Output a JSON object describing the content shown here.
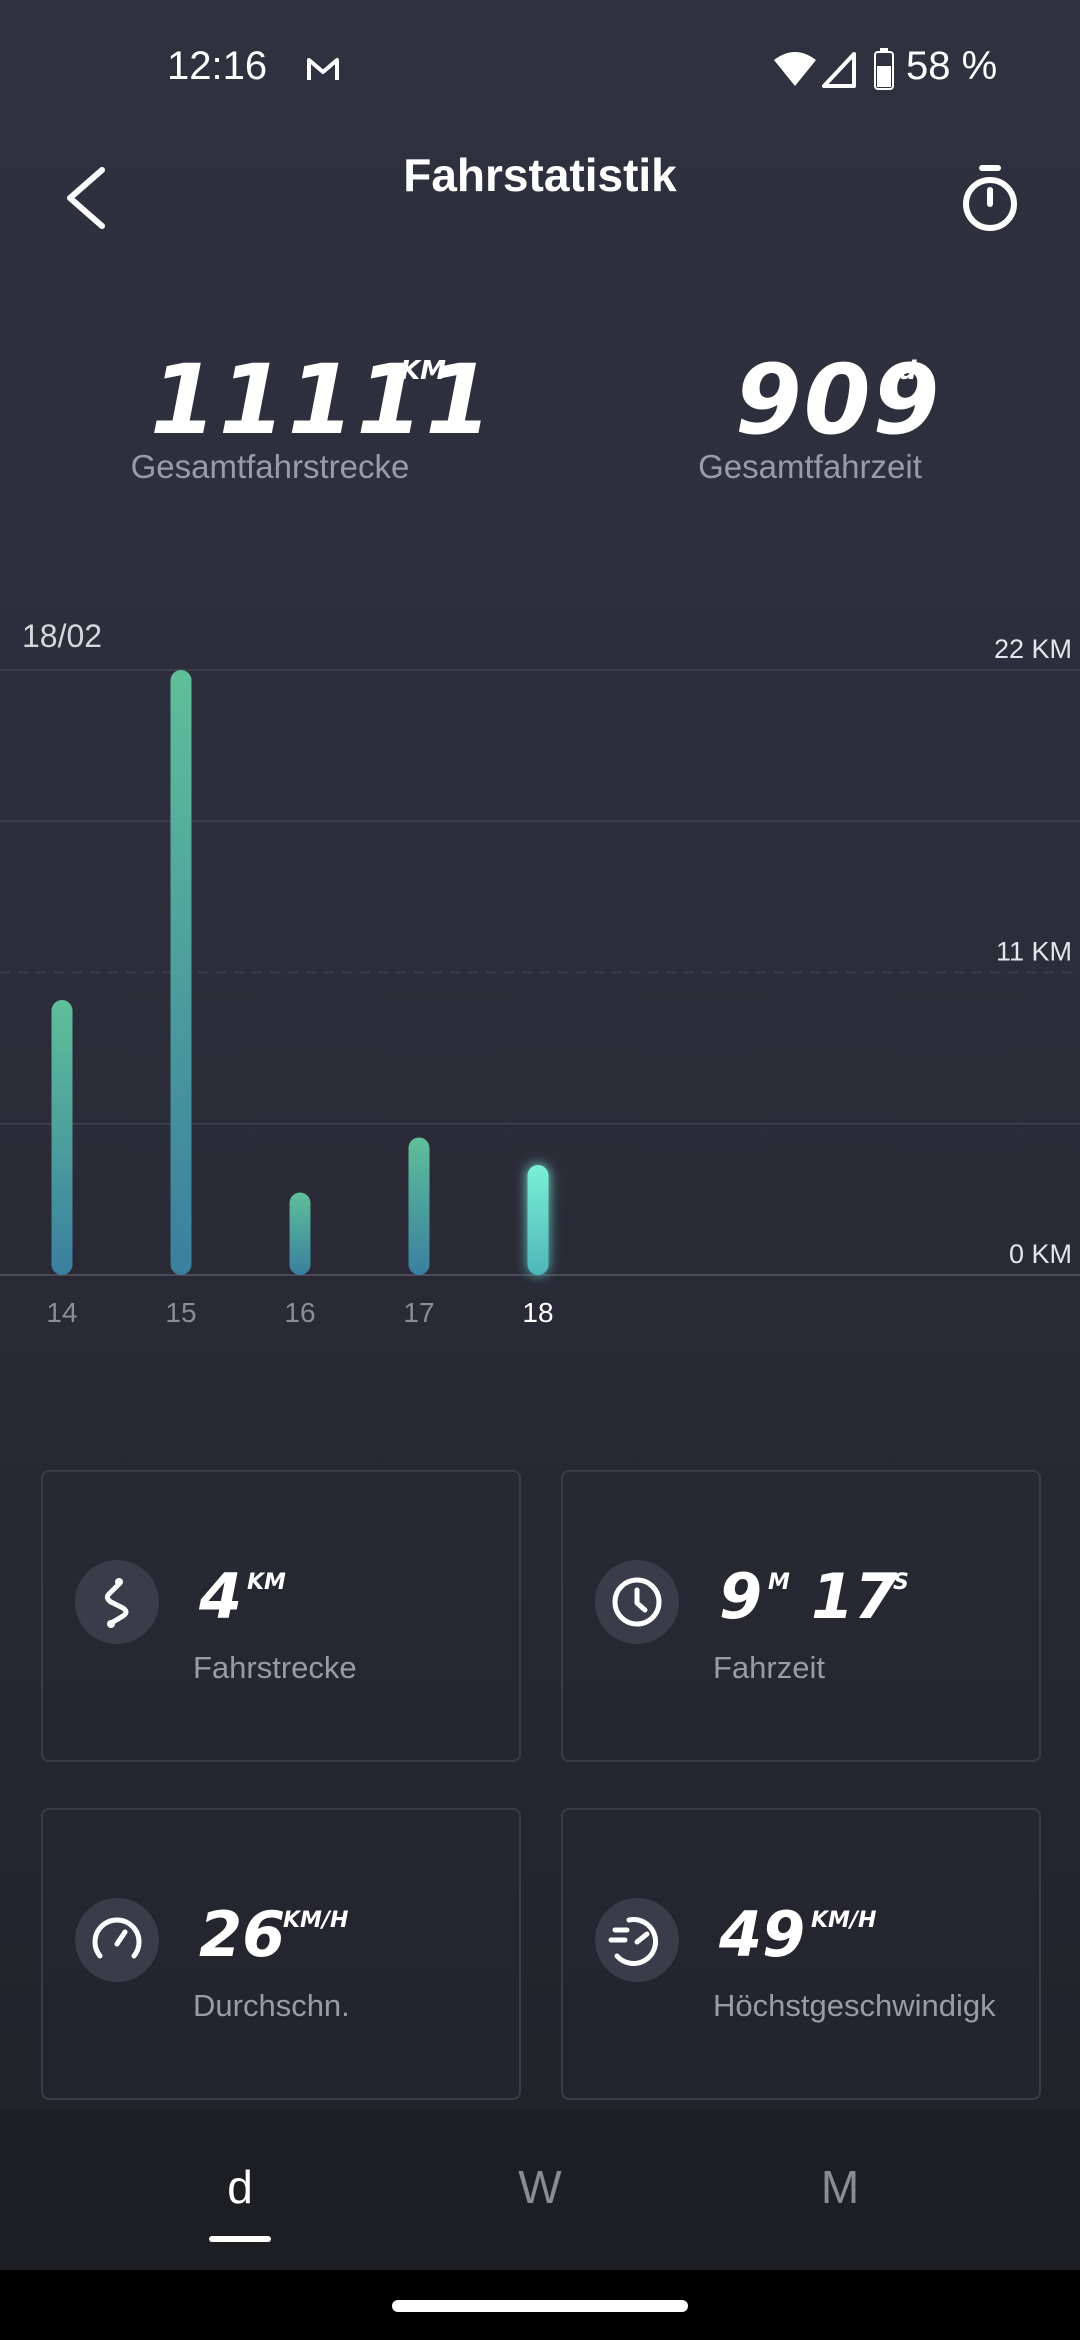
{
  "status_bar": {
    "time": "12:16",
    "battery": "58 %"
  },
  "header": {
    "title": "Fahrstatistik"
  },
  "totals": {
    "distance": {
      "value": "11111",
      "unit": "KM",
      "label": "Gesamtfahrstrecke"
    },
    "time": {
      "value": "909",
      "unit": "d",
      "label": "Gesamtfahrzeit"
    }
  },
  "chart_data": {
    "type": "bar",
    "date_label": "18/02",
    "categories": [
      "14",
      "15",
      "16",
      "17",
      "18"
    ],
    "values": [
      10,
      22,
      3,
      5,
      4
    ],
    "selected_index": 4,
    "unit": "KM",
    "ylim": [
      0,
      22
    ],
    "y_ticks": [
      "22 KM",
      "11 KM",
      "0 KM"
    ],
    "grid": true
  },
  "cards": [
    {
      "value": "4",
      "unit": "KM",
      "label": "Fahrstrecke",
      "icon": "route-icon"
    },
    {
      "value": "9",
      "unit": "M",
      "value2": "17",
      "unit2": "S",
      "label": "Fahrzeit",
      "icon": "clock-icon"
    },
    {
      "value": "26",
      "unit": "KM/H",
      "label": "Durchschn.",
      "icon": "speedometer-icon"
    },
    {
      "value": "49",
      "unit": "KM/H",
      "label": "Höchstgeschwindigk",
      "icon": "max-speed-icon"
    }
  ],
  "tabs": {
    "day": "d",
    "week": "W",
    "month": "M",
    "selected": "day"
  },
  "colors": {
    "bar_top": "#5fbf9a",
    "bar_bottom": "#3a7f9f",
    "bar_selected": "#6fe8cf"
  }
}
